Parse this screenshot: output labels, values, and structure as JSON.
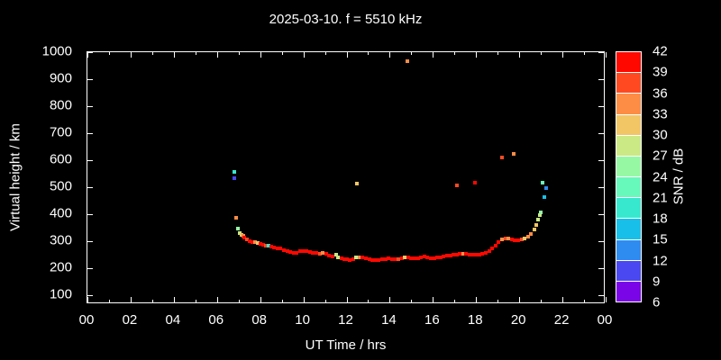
{
  "title": "2025-03-10. f = 5510 kHz",
  "axes": {
    "x_label": "UT Time / hrs",
    "y_label": "Virtual height / km",
    "x_tick_labels": [
      "00",
      "02",
      "04",
      "06",
      "08",
      "10",
      "12",
      "14",
      "16",
      "18",
      "20",
      "22",
      "00"
    ],
    "y_tick_labels": [
      "100",
      "200",
      "300",
      "400",
      "500",
      "600",
      "700",
      "800",
      "900",
      "1000"
    ]
  },
  "colorbar": {
    "label": "SNR / dB",
    "tick_labels": [
      "42",
      "39",
      "36",
      "33",
      "30",
      "27",
      "24",
      "21",
      "18",
      "15",
      "12",
      "9",
      "6"
    ],
    "colors_bottom_to_top": [
      "#7a06e8",
      "#4a48f0",
      "#2e8cf0",
      "#18bfe8",
      "#38e8ce",
      "#67f8bc",
      "#97f8a4",
      "#cbe985",
      "#f2c565",
      "#fd8d45",
      "#ff4a21",
      "#ff0800"
    ]
  },
  "chart_data": {
    "type": "scatter",
    "title": "2025-03-10. f = 5510 kHz",
    "xlabel": "UT Time / hrs",
    "ylabel": "Virtual height / km",
    "xlim": [
      0,
      24
    ],
    "ylim": [
      65,
      1000
    ],
    "x_tick_hours": [
      0,
      2,
      4,
      6,
      8,
      10,
      12,
      14,
      16,
      18,
      20,
      22,
      24
    ],
    "y_tick_km": [
      100,
      200,
      300,
      400,
      500,
      600,
      700,
      800,
      900,
      1000
    ],
    "grid": false,
    "legend": "colorbar-right",
    "snr_band_min": 6,
    "snr_band_max": 42,
    "snr_band_step": 3,
    "point_format": [
      "ut_hour",
      "virtual_height_km",
      "snr_db"
    ],
    "points": [
      [
        6.8,
        531,
        10
      ],
      [
        6.82,
        555,
        19
      ],
      [
        6.9,
        385,
        34
      ],
      [
        6.98,
        346,
        26
      ],
      [
        7.05,
        330,
        29
      ],
      [
        7.12,
        323,
        31
      ],
      [
        7.2,
        318,
        33
      ],
      [
        7.28,
        313,
        40
      ],
      [
        7.4,
        305,
        38
      ],
      [
        7.52,
        299,
        40
      ],
      [
        7.64,
        296,
        40
      ],
      [
        7.76,
        294,
        34
      ],
      [
        7.88,
        291,
        32
      ],
      [
        8.0,
        289,
        40
      ],
      [
        8.12,
        286,
        40
      ],
      [
        8.25,
        283,
        37
      ],
      [
        8.38,
        281,
        19
      ],
      [
        8.5,
        278,
        40
      ],
      [
        8.65,
        275,
        40
      ],
      [
        8.8,
        273,
        40
      ],
      [
        8.95,
        271,
        40
      ],
      [
        9.1,
        267,
        40
      ],
      [
        9.25,
        263,
        40
      ],
      [
        9.4,
        258,
        40
      ],
      [
        9.55,
        254,
        40
      ],
      [
        9.7,
        257,
        40
      ],
      [
        9.85,
        262,
        40
      ],
      [
        10.0,
        263,
        40
      ],
      [
        10.15,
        262,
        40
      ],
      [
        10.3,
        260,
        40
      ],
      [
        10.45,
        257,
        40
      ],
      [
        10.6,
        255,
        40
      ],
      [
        10.75,
        252,
        37
      ],
      [
        10.9,
        257,
        34
      ],
      [
        11.05,
        251,
        40
      ],
      [
        11.2,
        246,
        40
      ],
      [
        11.35,
        243,
        40
      ],
      [
        11.5,
        248,
        28
      ],
      [
        11.62,
        240,
        29
      ],
      [
        11.75,
        236,
        40
      ],
      [
        11.88,
        233,
        40
      ],
      [
        12.0,
        231,
        40
      ],
      [
        12.15,
        229,
        40
      ],
      [
        12.3,
        233,
        40
      ],
      [
        12.45,
        238,
        28
      ],
      [
        12.6,
        240,
        34
      ],
      [
        12.75,
        237,
        40
      ],
      [
        12.9,
        234,
        40
      ],
      [
        13.05,
        231,
        40
      ],
      [
        13.2,
        229,
        40
      ],
      [
        13.35,
        228,
        40
      ],
      [
        13.5,
        229,
        40
      ],
      [
        13.65,
        231,
        40
      ],
      [
        13.8,
        233,
        40
      ],
      [
        13.95,
        234,
        40
      ],
      [
        14.1,
        232,
        40
      ],
      [
        14.25,
        231,
        40
      ],
      [
        14.4,
        233,
        37
      ],
      [
        14.55,
        236,
        40
      ],
      [
        14.7,
        239,
        31
      ],
      [
        14.85,
        237,
        40
      ],
      [
        15.0,
        235,
        40
      ],
      [
        15.15,
        234,
        40
      ],
      [
        15.3,
        236,
        40
      ],
      [
        15.45,
        239,
        40
      ],
      [
        15.6,
        241,
        40
      ],
      [
        15.75,
        237,
        40
      ],
      [
        15.9,
        234,
        40
      ],
      [
        16.05,
        236,
        40
      ],
      [
        16.2,
        238,
        40
      ],
      [
        16.35,
        240,
        40
      ],
      [
        16.5,
        242,
        40
      ],
      [
        16.65,
        244,
        40
      ],
      [
        16.8,
        245,
        40
      ],
      [
        16.95,
        247,
        40
      ],
      [
        17.1,
        250,
        40
      ],
      [
        17.25,
        252,
        40
      ],
      [
        17.4,
        253,
        34
      ],
      [
        17.55,
        252,
        40
      ],
      [
        17.7,
        250,
        40
      ],
      [
        17.85,
        248,
        40
      ],
      [
        18.0,
        247,
        40
      ],
      [
        18.15,
        250,
        40
      ],
      [
        18.3,
        253,
        40
      ],
      [
        18.45,
        256,
        40
      ],
      [
        18.6,
        262,
        40
      ],
      [
        18.75,
        272,
        40
      ],
      [
        18.9,
        282,
        40
      ],
      [
        19.05,
        295,
        40
      ],
      [
        19.2,
        304,
        34
      ],
      [
        19.35,
        308,
        37
      ],
      [
        19.5,
        309,
        34
      ],
      [
        19.65,
        306,
        40
      ],
      [
        19.8,
        302,
        40
      ],
      [
        19.95,
        301,
        40
      ],
      [
        20.1,
        304,
        37
      ],
      [
        20.25,
        309,
        31
      ],
      [
        20.4,
        316,
        34
      ],
      [
        20.55,
        327,
        34
      ],
      [
        20.7,
        342,
        31
      ],
      [
        20.8,
        360,
        31
      ],
      [
        20.88,
        380,
        27
      ],
      [
        20.95,
        395,
        28
      ],
      [
        21.0,
        407,
        25
      ],
      [
        12.47,
        513,
        32
      ],
      [
        14.8,
        968,
        35
      ],
      [
        17.1,
        507,
        37
      ],
      [
        17.95,
        515,
        40
      ],
      [
        19.2,
        608,
        38
      ],
      [
        19.75,
        624,
        35
      ],
      [
        21.07,
        515,
        22
      ],
      [
        21.16,
        463,
        16
      ],
      [
        21.26,
        496,
        13
      ]
    ]
  }
}
